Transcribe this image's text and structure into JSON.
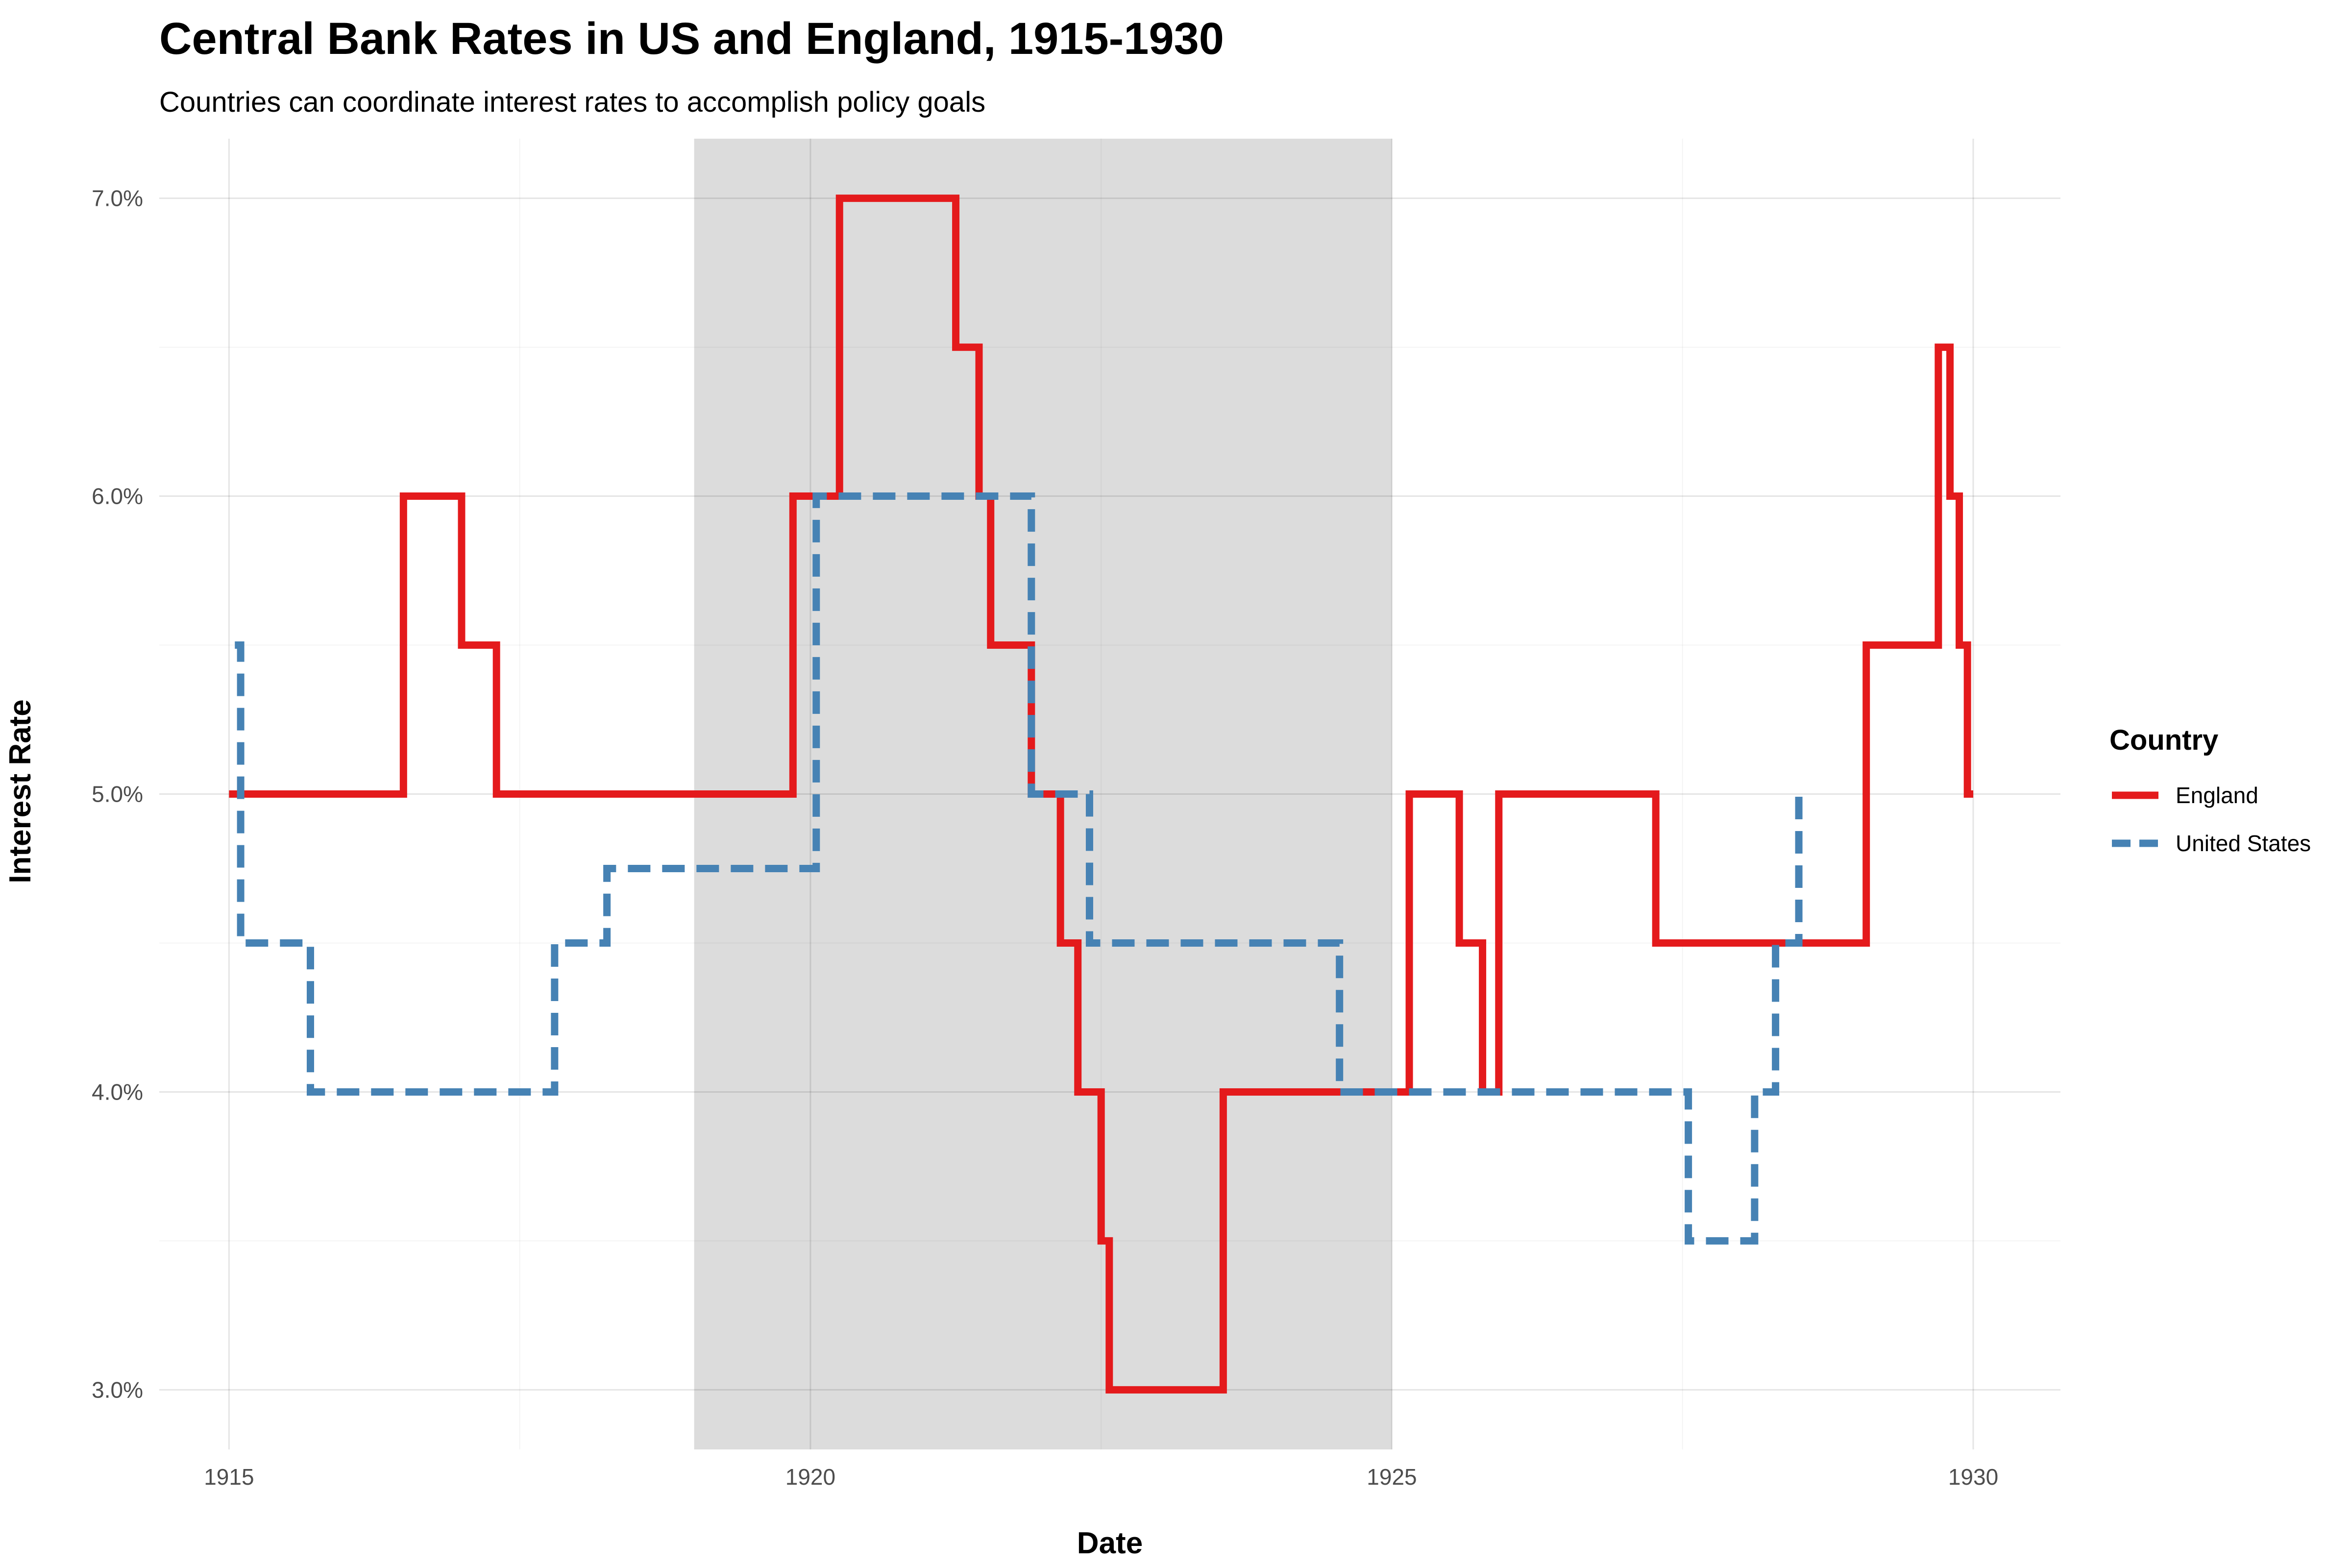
{
  "chart_data": {
    "type": "line",
    "step": true,
    "title": "Central Bank Rates in US and England, 1915-1930",
    "subtitle": "Countries can coordinate interest rates to accomplish policy goals",
    "xlabel": "Date",
    "ylabel": "Interest Rate",
    "xlim": [
      1914.4,
      1930.75
    ],
    "ylim": [
      2.8,
      7.2
    ],
    "x_ticks": [
      1915,
      1920,
      1925,
      1930
    ],
    "x_tick_labels": [
      "1915",
      "1920",
      "1925",
      "1930"
    ],
    "y_ticks": [
      3,
      4,
      5,
      6,
      7
    ],
    "y_tick_labels": [
      "3.0%",
      "4.0%",
      "5.0%",
      "6.0%",
      "7.0%"
    ],
    "grid": true,
    "shaded_region": {
      "x_start": 1919,
      "x_end": 1925,
      "color": "#dcdcdc"
    },
    "legend": {
      "title": "Country",
      "placement": "right"
    },
    "series": [
      {
        "name": "England",
        "color": "#e41a1c",
        "line_style": "solid",
        "x": [
          1915.0,
          1916.5,
          1917.0,
          1917.3,
          1919.85,
          1920.25,
          1921.25,
          1921.45,
          1921.55,
          1921.9,
          1922.15,
          1922.3,
          1922.5,
          1922.57,
          1923.55,
          1925.15,
          1925.58,
          1925.78,
          1925.92,
          1927.27,
          1929.08,
          1929.7,
          1929.8,
          1929.88,
          1929.95,
          1930.0
        ],
        "y": [
          5.0,
          6.0,
          5.5,
          5.0,
          6.0,
          7.0,
          6.5,
          6.0,
          5.5,
          5.0,
          4.5,
          4.0,
          3.5,
          3.0,
          4.0,
          5.0,
          4.5,
          4.0,
          5.0,
          4.5,
          5.5,
          6.5,
          6.0,
          5.5,
          5.0,
          5.0
        ]
      },
      {
        "name": "United States",
        "color": "#4682b4",
        "line_style": "dashed",
        "x": [
          1915.05,
          1915.1,
          1915.7,
          1917.8,
          1918.25,
          1920.05,
          1921.9,
          1922.4,
          1924.55,
          1927.55,
          1928.12,
          1928.3,
          1928.5,
          1928.55
        ],
        "y": [
          5.5,
          4.5,
          4.0,
          4.5,
          4.75,
          6.0,
          5.0,
          4.5,
          4.0,
          3.5,
          4.0,
          4.5,
          5.0,
          5.0
        ]
      }
    ]
  }
}
